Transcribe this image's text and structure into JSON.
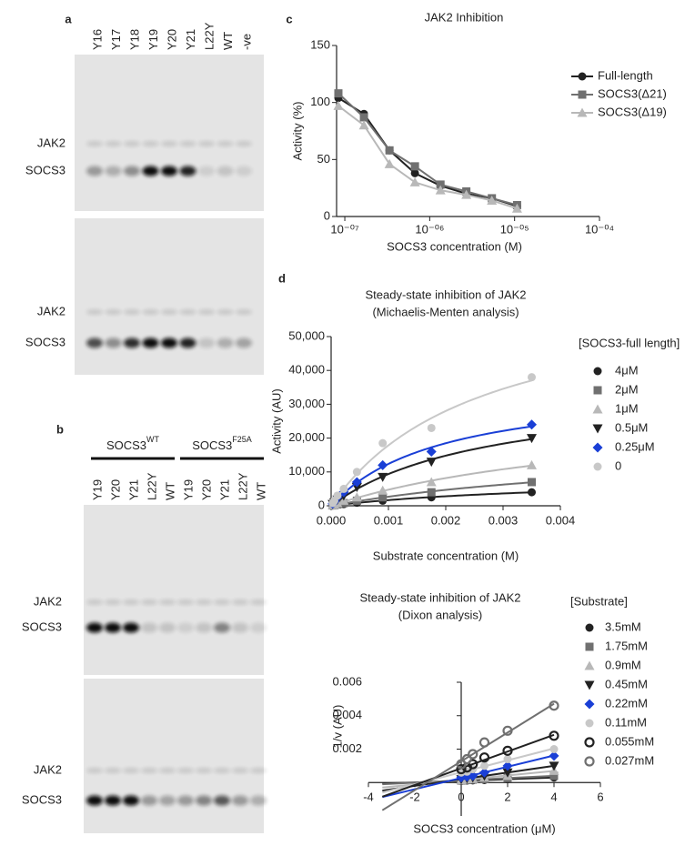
{
  "panel_labels": [
    "a",
    "b",
    "c",
    "d"
  ],
  "gels": [
    {
      "lanes": [
        "Y16",
        "Y17",
        "Y18",
        "Y19",
        "Y20",
        "Y21",
        "L22Y",
        "WT",
        "-ve"
      ],
      "blots": [
        {
          "bands": [
            "JAK2",
            "SOCS3"
          ]
        },
        {
          "bands": [
            "JAK2",
            "SOCS3"
          ]
        }
      ]
    },
    {
      "groups": [
        {
          "name": "SOCS3",
          "sup": "WT"
        },
        {
          "name": "SOCS3",
          "sup": "F25A"
        }
      ],
      "lanes": [
        "Y19",
        "Y20",
        "Y21",
        "L22Y",
        "WT",
        "Y19",
        "Y20",
        "Y21",
        "L22Y",
        "WT"
      ],
      "blots": [
        {
          "bands": [
            "JAK2",
            "SOCS3"
          ]
        },
        {
          "bands": [
            "JAK2",
            "SOCS3"
          ]
        }
      ]
    }
  ],
  "chart_data": [
    {
      "type": "line",
      "title": "JAK2 Inhibition",
      "x_label": "SOCS3 concentration (M)",
      "y_label": "Activity (%)",
      "xlog": true,
      "xlim": [
        8e-08,
        0.0001
      ],
      "xticks": [
        {
          "value": 1e-07,
          "label": "10⁻⁰⁷"
        },
        {
          "value": 1e-06,
          "label": "10⁻⁰⁶"
        },
        {
          "value": 1e-05,
          "label": "10⁻⁰⁵"
        },
        {
          "value": 0.0001,
          "label": "10⁻⁰⁴"
        }
      ],
      "ylim": [
        0,
        150
      ],
      "yticks": [
        0,
        50,
        100,
        150
      ],
      "legend_color": "#1b1b7a",
      "x": [
        8.4e-08,
        1.68e-07,
        3.36e-07,
        6.7e-07,
        1.34e-06,
        2.7e-06,
        5.4e-06,
        1.07e-05
      ],
      "series": [
        {
          "name": "Full-length",
          "color": "#222222",
          "marker": "circle",
          "values": [
            104,
            90,
            58,
            38,
            27,
            20,
            16,
            9
          ]
        },
        {
          "name": "SOCS3(Δ21)",
          "color": "#707070",
          "marker": "square",
          "values": [
            108,
            87,
            58,
            44,
            28,
            22,
            16,
            10
          ]
        },
        {
          "name": "SOCS3(Δ19)",
          "color": "#b8b8b8",
          "marker": "triangle",
          "values": [
            97,
            80,
            46,
            30,
            23,
            19,
            14,
            7
          ]
        }
      ]
    },
    {
      "type": "scatter",
      "fit": "michaelis-menten",
      "title": "Steady-state inhibition of JAK2",
      "subtitle": "(Michaelis-Menten analysis)",
      "x_label": "Substrate concentration (M)",
      "y_label": "Activity (AU)",
      "legend_title": "[SOCS3-full length]",
      "legend_color": "#1b1b7a",
      "xlim": [
        0,
        0.004
      ],
      "xticks": [
        {
          "value": 0,
          "label": "0.000"
        },
        {
          "value": 0.001,
          "label": "0.001"
        },
        {
          "value": 0.002,
          "label": "0.002"
        },
        {
          "value": 0.003,
          "label": "0.003"
        },
        {
          "value": 0.004,
          "label": "0.004"
        }
      ],
      "ylim": [
        0,
        50000
      ],
      "yticks": [
        0,
        {
          "value": 10000,
          "label": "10,000"
        },
        {
          "value": 20000,
          "label": "20,000"
        },
        {
          "value": 30000,
          "label": "30,000"
        },
        {
          "value": 40000,
          "label": "40,000"
        },
        {
          "value": 50000,
          "label": "50,000"
        }
      ],
      "x": [
        0.0035,
        0.00175,
        0.0009,
        0.00045,
        0.00022,
        0.00011,
        5.5e-05,
        2.7e-05
      ],
      "series": [
        {
          "name": "4μM",
          "color": "#222222",
          "marker": "circle",
          "values": [
            4000,
            2500,
            1500,
            900,
            500,
            300,
            150,
            80
          ]
        },
        {
          "name": "2μM",
          "color": "#707070",
          "marker": "square",
          "values": [
            7000,
            4000,
            2500,
            1500,
            800,
            400,
            200,
            100
          ]
        },
        {
          "name": "1μM",
          "color": "#b8b8b8",
          "marker": "triangle",
          "values": [
            12000,
            7000,
            4500,
            2500,
            1500,
            800,
            400,
            200
          ]
        },
        {
          "name": "0.5μM",
          "color": "#222222",
          "marker": "triangle-down",
          "values": [
            20000,
            13000,
            8500,
            5500,
            3000,
            1800,
            1000,
            500
          ]
        },
        {
          "name": "0.25μM",
          "color": "#1a3fd6",
          "marker": "diamond",
          "values": [
            24000,
            16000,
            12000,
            7000,
            4000,
            2500,
            1200,
            600
          ]
        },
        {
          "name": "0",
          "color": "#c8c8c8",
          "marker": "circle",
          "values": [
            38000,
            23000,
            18500,
            10000,
            5000,
            3000,
            1500,
            800
          ]
        }
      ]
    },
    {
      "type": "scatter",
      "fit": "linear",
      "axes_at_zero": true,
      "title": "Steady-state inhibition of JAK2",
      "subtitle": "(Dixon analysis)",
      "x_label": "SOCS3 concentration (μM)",
      "y_label": "1/v (AU)",
      "legend_title": "[Substrate]",
      "legend_color": "#1b1b7a",
      "xlim": [
        -4,
        6
      ],
      "xticks": [
        -4,
        -2,
        0,
        2,
        4,
        6
      ],
      "ylim": [
        -0.002,
        0.006
      ],
      "yticks": [
        0.002,
        0.004,
        0.006
      ],
      "x": [
        0,
        0.25,
        0.5,
        1,
        2,
        4
      ],
      "series": [
        {
          "name": "3.5mM",
          "color": "#222222",
          "marker": "circle",
          "values": [
            0.0001,
            0.00012,
            0.00013,
            0.00015,
            0.0002,
            0.0003
          ]
        },
        {
          "name": "1.75mM",
          "color": "#707070",
          "marker": "square",
          "values": [
            0.00012,
            0.00015,
            0.00017,
            0.0002,
            0.00027,
            0.0004
          ]
        },
        {
          "name": "0.9mM",
          "color": "#b8b8b8",
          "marker": "triangle",
          "values": [
            0.00015,
            0.0002,
            0.00022,
            0.0003,
            0.0004,
            0.0007
          ]
        },
        {
          "name": "0.45mM",
          "color": "#222222",
          "marker": "triangle-down",
          "values": [
            0.0002,
            0.00025,
            0.0003,
            0.0004,
            0.0006,
            0.001
          ]
        },
        {
          "name": "0.22mM",
          "color": "#1a3fd6",
          "marker": "diamond",
          "values": [
            0.0003,
            0.00035,
            0.0004,
            0.0006,
            0.001,
            0.0016
          ]
        },
        {
          "name": "0.11mM",
          "color": "#c8c8c8",
          "marker": "circle",
          "values": [
            0.0006,
            0.00065,
            0.0008,
            0.001,
            0.0014,
            0.002
          ]
        },
        {
          "name": "0.055mM",
          "color": "#222222",
          "marker": "circle-open",
          "values": [
            0.0008,
            0.0009,
            0.0011,
            0.0015,
            0.0019,
            0.0028
          ]
        },
        {
          "name": "0.027mM",
          "color": "#707070",
          "marker": "circle-open",
          "values": [
            0.0011,
            0.0014,
            0.0017,
            0.0024,
            0.0031,
            0.0046
          ]
        }
      ]
    }
  ]
}
